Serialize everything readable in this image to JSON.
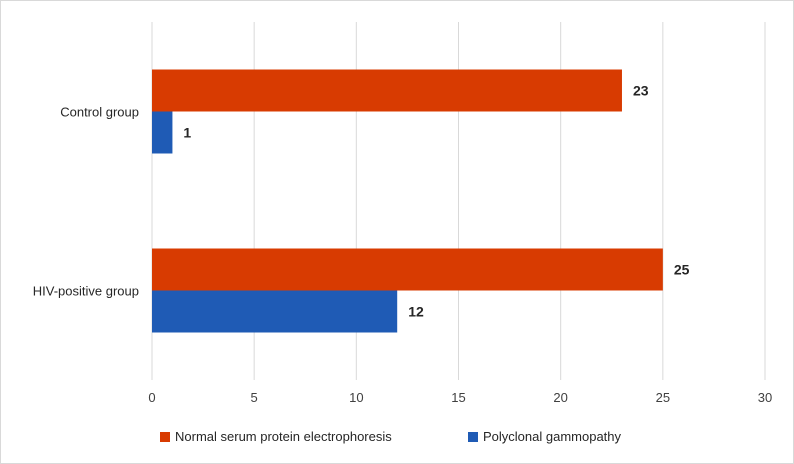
{
  "chart_data": {
    "type": "bar",
    "orientation": "horizontal",
    "title": "",
    "xlabel": "",
    "ylabel": "",
    "categories": [
      "Control group",
      "HIV-positive group"
    ],
    "series": [
      {
        "name": "Normal serum protein electrophoresis",
        "values": [
          23,
          25
        ],
        "color": "#d83b01"
      },
      {
        "name": "Polyclonal gammopathy",
        "values": [
          1,
          12
        ],
        "color": "#1f5bb5"
      }
    ],
    "xlim": [
      0,
      30
    ],
    "xticks": [
      0,
      5,
      10,
      15,
      20,
      25,
      30
    ],
    "grid": true,
    "legend_position": "bottom",
    "data_labels": true
  }
}
